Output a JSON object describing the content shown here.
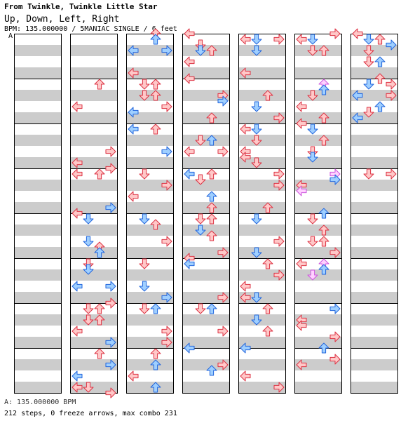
{
  "header": {
    "title": "From Twinkle, Twinkle Little Star",
    "subtitle": "Up, Down, Left, Right",
    "bpm_line": "BPM: 135.000000 / 5MANIAC SINGLE / 6 feet"
  },
  "marker_label": "A",
  "footer": {
    "bpm": "A: 135.000000 BPM",
    "summary": "212 steps, 0 freeze arrows, max combo 231"
  },
  "colors": {
    "band_gray": "#cccccc",
    "band_white": "#ffffff",
    "border": "#000000",
    "red_fill": "#ffc8c8",
    "red_stroke": "#dd3344",
    "blue_fill": "#9fcfff",
    "blue_stroke": "#2266dd",
    "pink_fill": "#ffd0ff",
    "pink_stroke": "#cc55dd"
  },
  "chart_data": {
    "type": "stepchart",
    "lanes": [
      "left",
      "down",
      "up",
      "right"
    ],
    "columns": 7,
    "measures_per_column": 8,
    "arrows": [
      [
        1,
        1,
        1,
        "up",
        "red"
      ],
      [
        1,
        1,
        5,
        "left",
        "red"
      ],
      [
        1,
        2,
        5,
        "right",
        "red"
      ],
      [
        1,
        2,
        7,
        "left",
        "red"
      ],
      [
        1,
        2,
        8,
        "right",
        "red"
      ],
      [
        1,
        3,
        1,
        "left",
        "red"
      ],
      [
        1,
        3,
        1,
        "up",
        "red"
      ],
      [
        1,
        3,
        7,
        "right",
        "blue"
      ],
      [
        1,
        4,
        0,
        "left",
        "red"
      ],
      [
        1,
        4,
        1,
        "down",
        "blue"
      ],
      [
        1,
        4,
        5,
        "down",
        "blue"
      ],
      [
        1,
        4,
        6,
        "up",
        "red"
      ],
      [
        1,
        4,
        7,
        "up",
        "blue"
      ],
      [
        1,
        5,
        1,
        "down",
        "red"
      ],
      [
        1,
        5,
        2,
        "down",
        "blue"
      ],
      [
        1,
        5,
        5,
        "left",
        "blue"
      ],
      [
        1,
        5,
        5,
        "right",
        "blue"
      ],
      [
        1,
        5,
        8,
        "right",
        "red"
      ],
      [
        1,
        6,
        1,
        "down",
        "red"
      ],
      [
        1,
        6,
        1,
        "up",
        "red"
      ],
      [
        1,
        6,
        3,
        "down",
        "red"
      ],
      [
        1,
        6,
        3,
        "up",
        "red"
      ],
      [
        1,
        6,
        5,
        "left",
        "red"
      ],
      [
        1,
        6,
        7,
        "right",
        "blue"
      ],
      [
        1,
        7,
        1,
        "up",
        "red"
      ],
      [
        1,
        7,
        3,
        "right",
        "blue"
      ],
      [
        1,
        7,
        5,
        "left",
        "blue"
      ],
      [
        1,
        7,
        7,
        "left",
        "red"
      ],
      [
        1,
        7,
        7,
        "down",
        "red"
      ],
      [
        1,
        7,
        8,
        "right",
        "red"
      ],
      [
        1,
        8,
        1,
        "right",
        "red"
      ],
      [
        1,
        8,
        3,
        "right",
        "red"
      ],
      [
        1,
        8,
        5,
        "up",
        "red"
      ],
      [
        1,
        8,
        6,
        "up",
        "blue"
      ],
      [
        2,
        0,
        0,
        "up",
        "red"
      ],
      [
        2,
        0,
        1,
        "up",
        "blue"
      ],
      [
        2,
        0,
        3,
        "left",
        "blue"
      ],
      [
        2,
        0,
        3,
        "right",
        "blue"
      ],
      [
        2,
        0,
        7,
        "left",
        "red"
      ],
      [
        2,
        1,
        1,
        "down",
        "red"
      ],
      [
        2,
        1,
        1,
        "up",
        "red"
      ],
      [
        2,
        1,
        3,
        "down",
        "red"
      ],
      [
        2,
        1,
        3,
        "up",
        "red"
      ],
      [
        2,
        1,
        5,
        "right",
        "red"
      ],
      [
        2,
        1,
        6,
        "left",
        "blue"
      ],
      [
        2,
        2,
        1,
        "left",
        "blue"
      ],
      [
        2,
        2,
        1,
        "up",
        "red"
      ],
      [
        2,
        2,
        5,
        "right",
        "blue"
      ],
      [
        2,
        3,
        1,
        "down",
        "red"
      ],
      [
        2,
        3,
        3,
        "right",
        "red"
      ],
      [
        2,
        3,
        5,
        "left",
        "red"
      ],
      [
        2,
        4,
        1,
        "down",
        "blue"
      ],
      [
        2,
        4,
        2,
        "up",
        "red"
      ],
      [
        2,
        4,
        5,
        "right",
        "red"
      ],
      [
        2,
        5,
        1,
        "down",
        "red"
      ],
      [
        2,
        5,
        5,
        "down",
        "blue"
      ],
      [
        2,
        5,
        7,
        "right",
        "blue"
      ],
      [
        2,
        6,
        1,
        "down",
        "red"
      ],
      [
        2,
        6,
        1,
        "up",
        "blue"
      ],
      [
        2,
        6,
        5,
        "right",
        "red"
      ],
      [
        2,
        6,
        7,
        "right",
        "red"
      ],
      [
        2,
        7,
        1,
        "up",
        "red"
      ],
      [
        2,
        7,
        3,
        "up",
        "blue"
      ],
      [
        2,
        7,
        5,
        "left",
        "red"
      ],
      [
        2,
        7,
        7,
        "up",
        "blue"
      ],
      [
        2,
        8,
        1,
        "right",
        "blue"
      ],
      [
        2,
        8,
        3,
        "right",
        "blue"
      ],
      [
        2,
        8,
        5,
        "down",
        "red"
      ],
      [
        2,
        8,
        7,
        "up",
        "red"
      ],
      [
        3,
        0,
        0,
        "left",
        "red"
      ],
      [
        3,
        0,
        2,
        "down",
        "red"
      ],
      [
        3,
        0,
        3,
        "down",
        "blue"
      ],
      [
        3,
        0,
        3,
        "up",
        "red"
      ],
      [
        3,
        0,
        5,
        "left",
        "red"
      ],
      [
        3,
        1,
        0,
        "left",
        "red"
      ],
      [
        3,
        1,
        3,
        "right",
        "red"
      ],
      [
        3,
        1,
        4,
        "right",
        "blue"
      ],
      [
        3,
        1,
        7,
        "up",
        "red"
      ],
      [
        3,
        2,
        3,
        "down",
        "red"
      ],
      [
        3,
        2,
        3,
        "up",
        "blue"
      ],
      [
        3,
        2,
        5,
        "left",
        "red"
      ],
      [
        3,
        2,
        5,
        "right",
        "red"
      ],
      [
        3,
        3,
        1,
        "left",
        "blue"
      ],
      [
        3,
        3,
        1,
        "up",
        "red"
      ],
      [
        3,
        3,
        2,
        "down",
        "red"
      ],
      [
        3,
        3,
        5,
        "up",
        "blue"
      ],
      [
        3,
        3,
        7,
        "up",
        "red"
      ],
      [
        3,
        4,
        1,
        "down",
        "red"
      ],
      [
        3,
        4,
        1,
        "up",
        "red"
      ],
      [
        3,
        4,
        3,
        "down",
        "blue"
      ],
      [
        3,
        4,
        4,
        "up",
        "red"
      ],
      [
        3,
        4,
        7,
        "right",
        "red"
      ],
      [
        3,
        5,
        0,
        "left",
        "red"
      ],
      [
        3,
        5,
        1,
        "left",
        "blue"
      ],
      [
        3,
        5,
        7,
        "right",
        "red"
      ],
      [
        3,
        6,
        1,
        "down",
        "red"
      ],
      [
        3,
        6,
        1,
        "up",
        "blue"
      ],
      [
        3,
        6,
        5,
        "right",
        "red"
      ],
      [
        3,
        7,
        0,
        "left",
        "blue"
      ],
      [
        3,
        7,
        3,
        "right",
        "red"
      ],
      [
        3,
        7,
        4,
        "up",
        "blue"
      ],
      [
        3,
        8,
        1,
        "left",
        "red"
      ],
      [
        3,
        8,
        3,
        "right",
        "red"
      ],
      [
        3,
        8,
        7,
        "up",
        "red"
      ],
      [
        4,
        0,
        1,
        "left",
        "red"
      ],
      [
        4,
        0,
        1,
        "down",
        "blue"
      ],
      [
        4,
        0,
        1,
        "right",
        "red"
      ],
      [
        4,
        0,
        3,
        "down",
        "blue"
      ],
      [
        4,
        0,
        7,
        "left",
        "red"
      ],
      [
        4,
        1,
        3,
        "up",
        "red"
      ],
      [
        4,
        1,
        5,
        "down",
        "blue"
      ],
      [
        4,
        1,
        7,
        "right",
        "red"
      ],
      [
        4,
        2,
        1,
        "left",
        "red"
      ],
      [
        4,
        2,
        1,
        "down",
        "blue"
      ],
      [
        4,
        2,
        3,
        "down",
        "red"
      ],
      [
        4,
        2,
        5,
        "left",
        "red"
      ],
      [
        4,
        2,
        6,
        "left",
        "red"
      ],
      [
        4,
        2,
        7,
        "down",
        "red"
      ],
      [
        4,
        3,
        1,
        "right",
        "red"
      ],
      [
        4,
        3,
        3,
        "right",
        "red"
      ],
      [
        4,
        3,
        7,
        "up",
        "red"
      ],
      [
        4,
        4,
        1,
        "down",
        "blue"
      ],
      [
        4,
        4,
        5,
        "right",
        "red"
      ],
      [
        4,
        4,
        7,
        "down",
        "blue"
      ],
      [
        4,
        5,
        1,
        "up",
        "red"
      ],
      [
        4,
        5,
        3,
        "right",
        "red"
      ],
      [
        4,
        5,
        5,
        "left",
        "red"
      ],
      [
        4,
        5,
        7,
        "left",
        "red"
      ],
      [
        4,
        5,
        7,
        "down",
        "blue"
      ],
      [
        4,
        6,
        1,
        "up",
        "red"
      ],
      [
        4,
        6,
        3,
        "down",
        "blue"
      ],
      [
        4,
        6,
        5,
        "up",
        "red"
      ],
      [
        4,
        7,
        0,
        "left",
        "blue"
      ],
      [
        4,
        7,
        5,
        "left",
        "red"
      ],
      [
        4,
        7,
        7,
        "right",
        "red"
      ],
      [
        4,
        8,
        1,
        "right",
        "red"
      ],
      [
        4,
        8,
        3,
        "right",
        "red"
      ],
      [
        4,
        8,
        5,
        "left",
        "pink"
      ],
      [
        4,
        8,
        6,
        "left",
        "blue"
      ],
      [
        5,
        0,
        0,
        "right",
        "red"
      ],
      [
        5,
        0,
        1,
        "left",
        "red"
      ],
      [
        5,
        0,
        1,
        "down",
        "blue"
      ],
      [
        5,
        0,
        3,
        "down",
        "red"
      ],
      [
        5,
        0,
        3,
        "up",
        "red"
      ],
      [
        5,
        1,
        1,
        "up",
        "pink"
      ],
      [
        5,
        1,
        2,
        "up",
        "blue"
      ],
      [
        5,
        1,
        3,
        "down",
        "red"
      ],
      [
        5,
        1,
        5,
        "left",
        "red"
      ],
      [
        5,
        1,
        7,
        "up",
        "red"
      ],
      [
        5,
        2,
        0,
        "left",
        "red"
      ],
      [
        5,
        2,
        1,
        "down",
        "blue"
      ],
      [
        5,
        2,
        3,
        "up",
        "red"
      ],
      [
        5,
        2,
        5,
        "down",
        "red"
      ],
      [
        5,
        2,
        6,
        "down",
        "blue"
      ],
      [
        5,
        3,
        1,
        "right",
        "pink"
      ],
      [
        5,
        3,
        2,
        "right",
        "blue"
      ],
      [
        5,
        3,
        3,
        "left",
        "red"
      ],
      [
        5,
        3,
        4,
        "left",
        "pink"
      ],
      [
        5,
        4,
        0,
        "up",
        "blue"
      ],
      [
        5,
        4,
        1,
        "down",
        "red"
      ],
      [
        5,
        4,
        3,
        "up",
        "red"
      ],
      [
        5,
        4,
        5,
        "down",
        "red"
      ],
      [
        5,
        4,
        5,
        "up",
        "red"
      ],
      [
        5,
        4,
        7,
        "right",
        "red"
      ],
      [
        5,
        5,
        1,
        "left",
        "red"
      ],
      [
        5,
        5,
        1,
        "up",
        "pink"
      ],
      [
        5,
        5,
        2,
        "up",
        "blue"
      ],
      [
        5,
        5,
        3,
        "down",
        "pink"
      ],
      [
        5,
        6,
        1,
        "right",
        "blue"
      ],
      [
        5,
        6,
        3,
        "left",
        "red"
      ],
      [
        5,
        6,
        4,
        "left",
        "red"
      ],
      [
        5,
        6,
        6,
        "right",
        "red"
      ],
      [
        5,
        7,
        0,
        "up",
        "blue"
      ],
      [
        5,
        7,
        2,
        "right",
        "red"
      ],
      [
        5,
        7,
        3,
        "left",
        "red"
      ],
      [
        5,
        8,
        1,
        "down",
        "blue"
      ],
      [
        5,
        8,
        3,
        "up",
        "blue"
      ],
      [
        5,
        8,
        5,
        "right",
        "red"
      ],
      [
        5,
        8,
        7,
        "up",
        "red"
      ],
      [
        6,
        0,
        0,
        "left",
        "red"
      ],
      [
        6,
        0,
        1,
        "down",
        "blue"
      ],
      [
        6,
        0,
        1,
        "up",
        "red"
      ],
      [
        6,
        0,
        2,
        "right",
        "blue"
      ],
      [
        6,
        0,
        3,
        "down",
        "red"
      ],
      [
        6,
        0,
        5,
        "down",
        "red"
      ],
      [
        6,
        0,
        5,
        "up",
        "blue"
      ],
      [
        6,
        1,
        0,
        "up",
        "red"
      ],
      [
        6,
        1,
        1,
        "down",
        "blue"
      ],
      [
        6,
        1,
        1,
        "right",
        "red"
      ],
      [
        6,
        1,
        3,
        "left",
        "blue"
      ],
      [
        6,
        1,
        3,
        "right",
        "red"
      ],
      [
        6,
        1,
        5,
        "up",
        "blue"
      ],
      [
        6,
        1,
        6,
        "down",
        "red"
      ],
      [
        6,
        1,
        7,
        "left",
        "blue"
      ],
      [
        6,
        3,
        1,
        "down",
        "red"
      ],
      [
        6,
        3,
        1,
        "right",
        "red"
      ]
    ]
  }
}
